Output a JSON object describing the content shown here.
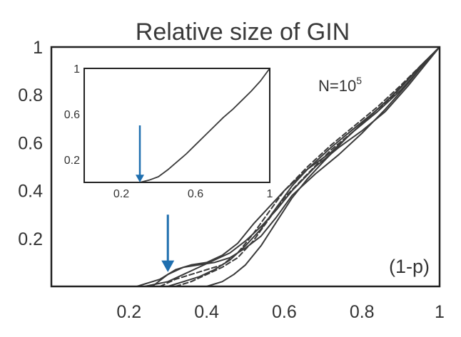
{
  "chart_data": [
    {
      "id": "main",
      "type": "line",
      "title": "Relative size of GIN",
      "xlabel": "(1-p)",
      "ylabel": "",
      "xlim": [
        0,
        1
      ],
      "ylim": [
        0,
        1
      ],
      "x_ticks": [
        "0.2",
        "0.4",
        "0.6",
        "0.8",
        "1"
      ],
      "x_tick_values": [
        0.2,
        0.4,
        0.6,
        0.8,
        1.0
      ],
      "y_ticks": [
        "0.2",
        "0.4",
        "0.6",
        "0.8",
        "1"
      ],
      "y_tick_values": [
        0.2,
        0.4,
        0.6,
        0.8,
        1.0
      ],
      "grid": false,
      "annotation": {
        "base": "N=10",
        "exponent": "5"
      },
      "arrow": {
        "x": 0.3,
        "y_top": 0.3,
        "y_tip": 0.06,
        "color": "#1f6faf"
      },
      "series": [
        {
          "style": "solid",
          "x": [
            0.22,
            0.28,
            0.32,
            0.36,
            0.4,
            0.44,
            0.48,
            0.52,
            0.56,
            0.6,
            0.66,
            0.72,
            0.78,
            0.84,
            0.9,
            0.95,
            1.0
          ],
          "y": [
            0.0,
            0.03,
            0.07,
            0.09,
            0.1,
            0.13,
            0.18,
            0.26,
            0.33,
            0.4,
            0.49,
            0.58,
            0.66,
            0.74,
            0.83,
            0.92,
            1.0
          ]
        },
        {
          "style": "solid",
          "x": [
            0.24,
            0.3,
            0.34,
            0.38,
            0.42,
            0.46,
            0.5,
            0.54,
            0.58,
            0.62,
            0.68,
            0.74,
            0.8,
            0.86,
            0.92,
            0.96,
            1.0
          ],
          "y": [
            0.0,
            0.02,
            0.05,
            0.08,
            0.11,
            0.14,
            0.19,
            0.25,
            0.32,
            0.4,
            0.5,
            0.58,
            0.65,
            0.73,
            0.84,
            0.92,
            1.0
          ]
        },
        {
          "style": "solid",
          "x": [
            0.26,
            0.3,
            0.34,
            0.38,
            0.42,
            0.46,
            0.5,
            0.54,
            0.58,
            0.62,
            0.68,
            0.74,
            0.8,
            0.86,
            0.92,
            0.96,
            1.0
          ],
          "y": [
            0.0,
            0.05,
            0.08,
            0.09,
            0.1,
            0.12,
            0.16,
            0.21,
            0.29,
            0.38,
            0.47,
            0.55,
            0.64,
            0.74,
            0.85,
            0.93,
            1.0
          ]
        },
        {
          "style": "solid",
          "x": [
            0.3,
            0.34,
            0.38,
            0.42,
            0.46,
            0.5,
            0.54,
            0.58,
            0.62,
            0.66,
            0.72,
            0.78,
            0.84,
            0.9,
            0.95,
            1.0
          ],
          "y": [
            0.0,
            0.02,
            0.04,
            0.07,
            0.11,
            0.17,
            0.24,
            0.33,
            0.42,
            0.49,
            0.56,
            0.65,
            0.73,
            0.82,
            0.91,
            1.0
          ]
        },
        {
          "style": "solid",
          "x": [
            0.4,
            0.44,
            0.47,
            0.5,
            0.54,
            0.58,
            0.62,
            0.66,
            0.7,
            0.76,
            0.82,
            0.88,
            0.94,
            1.0
          ],
          "y": [
            0.0,
            0.02,
            0.05,
            0.09,
            0.17,
            0.27,
            0.37,
            0.45,
            0.52,
            0.62,
            0.71,
            0.8,
            0.9,
            1.0
          ]
        },
        {
          "style": "dashed",
          "x": [
            0.28,
            0.32,
            0.36,
            0.4,
            0.44,
            0.48,
            0.52,
            0.56,
            0.6,
            0.66,
            0.72,
            0.78,
            0.84,
            0.9,
            0.95,
            1.0
          ],
          "y": [
            0.0,
            0.03,
            0.05,
            0.07,
            0.09,
            0.14,
            0.22,
            0.31,
            0.4,
            0.5,
            0.59,
            0.67,
            0.75,
            0.84,
            0.92,
            1.0
          ]
        },
        {
          "style": "dashed",
          "x": [
            0.32,
            0.36,
            0.4,
            0.44,
            0.48,
            0.52,
            0.56,
            0.6,
            0.66,
            0.72,
            0.78,
            0.84,
            0.9,
            0.95,
            1.0
          ],
          "y": [
            0.0,
            0.02,
            0.05,
            0.08,
            0.12,
            0.19,
            0.28,
            0.37,
            0.47,
            0.57,
            0.65,
            0.73,
            0.83,
            0.92,
            1.0
          ]
        }
      ]
    },
    {
      "id": "inset",
      "type": "line",
      "title": "",
      "xlabel": "",
      "ylabel": "",
      "xlim": [
        0,
        1
      ],
      "ylim": [
        0,
        1
      ],
      "x_ticks": [
        "0.2",
        "0.6",
        "1"
      ],
      "x_tick_values": [
        0.2,
        0.6,
        1.0
      ],
      "y_ticks": [
        "0.2",
        "0.6",
        "1"
      ],
      "y_tick_values": [
        0.2,
        0.6,
        1.0
      ],
      "grid": false,
      "arrow": {
        "x": 0.3,
        "y_top": 0.5,
        "y_tip": 0.0,
        "color": "#1f6faf"
      },
      "series": [
        {
          "style": "solid",
          "x": [
            0.3,
            0.35,
            0.4,
            0.45,
            0.5,
            0.55,
            0.6,
            0.65,
            0.7,
            0.75,
            0.8,
            0.85,
            0.9,
            0.95,
            1.0
          ],
          "y": [
            0.0,
            0.02,
            0.05,
            0.11,
            0.18,
            0.25,
            0.33,
            0.41,
            0.49,
            0.57,
            0.64,
            0.72,
            0.8,
            0.89,
            1.0
          ]
        }
      ]
    }
  ]
}
